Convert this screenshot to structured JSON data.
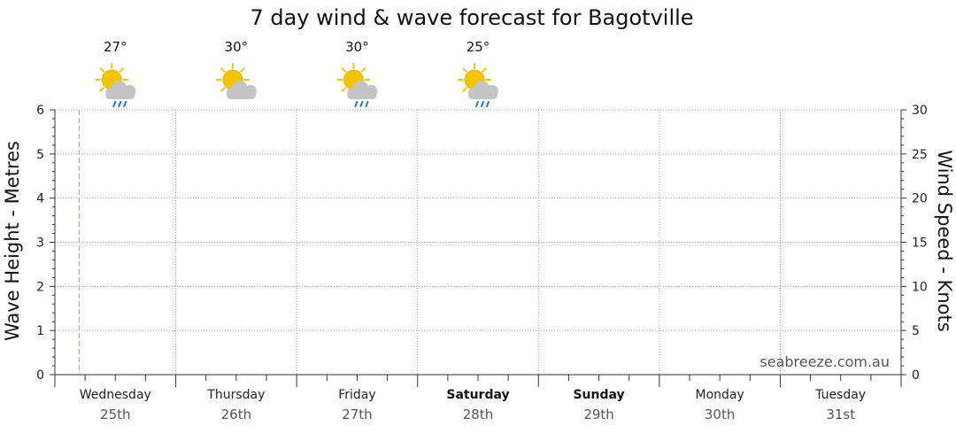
{
  "chart_data": {
    "type": "line",
    "title": "7 day wind & wave forecast for Bagotville",
    "ylabel_left": "Wave Height - Metres",
    "ylabel_right": "Wind Speed - Knots",
    "ylim_left": [
      0,
      6
    ],
    "ylim_right": [
      0,
      30
    ],
    "yticks_left": [
      "0",
      "1",
      "2",
      "3",
      "4",
      "5",
      "6"
    ],
    "yticks_right": [
      "0",
      "5",
      "10",
      "15",
      "20",
      "25",
      "30"
    ],
    "grid": true,
    "days": [
      {
        "day": "Wednesday",
        "date": "25th",
        "weekend": false
      },
      {
        "day": "Thursday",
        "date": "26th",
        "weekend": false
      },
      {
        "day": "Friday",
        "date": "27th",
        "weekend": false
      },
      {
        "day": "Saturday",
        "date": "28th",
        "weekend": true
      },
      {
        "day": "Sunday",
        "date": "29th",
        "weekend": true
      },
      {
        "day": "Monday",
        "date": "30th",
        "weekend": false
      },
      {
        "day": "Tuesday",
        "date": "31st",
        "weekend": false
      }
    ],
    "weather": [
      {
        "temp": "27°",
        "icon": "sun-cloud-rain-icon"
      },
      {
        "temp": "30°",
        "icon": "sun-cloud-icon"
      },
      {
        "temp": "30°",
        "icon": "sun-cloud-rain-icon"
      },
      {
        "temp": "25°",
        "icon": "sun-cloud-rain-icon"
      }
    ],
    "current_time_marker_day_fraction": 0.2,
    "series": []
  },
  "watermark": "seabreeze.com.au",
  "colors": {
    "grid": "#9a9a9a",
    "now_marker": "#f08080",
    "sun": "#f5c400",
    "cloud": "#c4c4c4",
    "rain": "#1e73e8"
  }
}
